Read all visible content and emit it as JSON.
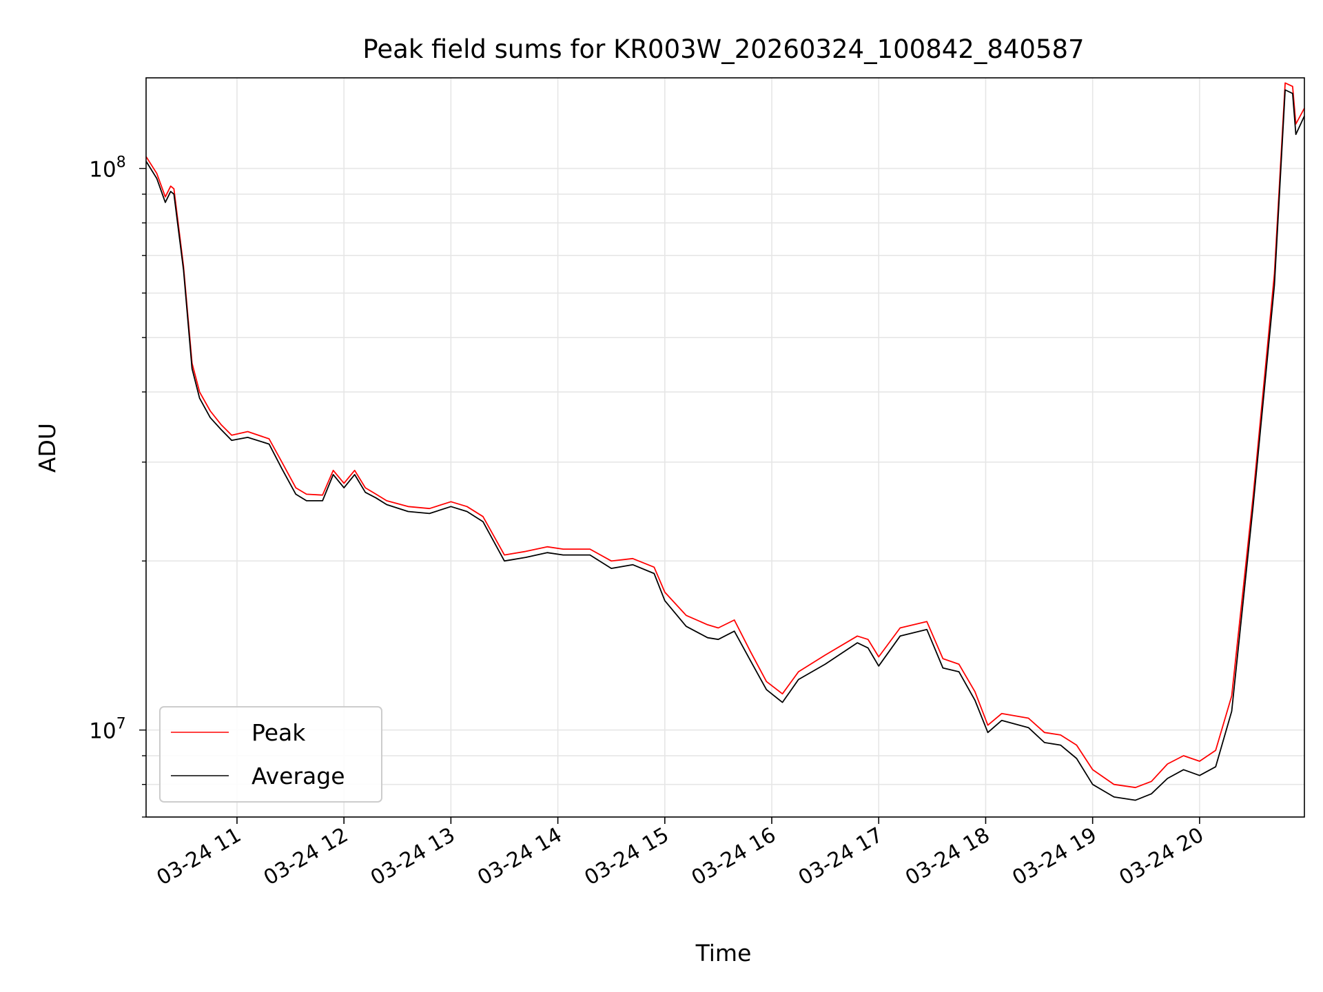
{
  "chart_data": {
    "type": "line",
    "title": "Peak field sums for KR003W_20260324_100842_840587",
    "xlabel": "Time",
    "ylabel": "ADU",
    "yscale": "log",
    "xlim_hours": [
      10.15,
      20.98
    ],
    "ylim": [
      7000000,
      145000000
    ],
    "grid": true,
    "legend_position": "lower-left",
    "x_ticks": [
      {
        "hour": 11,
        "label": "03-24 11"
      },
      {
        "hour": 12,
        "label": "03-24 12"
      },
      {
        "hour": 13,
        "label": "03-24 13"
      },
      {
        "hour": 14,
        "label": "03-24 14"
      },
      {
        "hour": 15,
        "label": "03-24 15"
      },
      {
        "hour": 16,
        "label": "03-24 16"
      },
      {
        "hour": 17,
        "label": "03-24 17"
      },
      {
        "hour": 18,
        "label": "03-24 18"
      },
      {
        "hour": 19,
        "label": "03-24 19"
      },
      {
        "hour": 20,
        "label": "03-24 20"
      }
    ],
    "y_ticks": [
      {
        "value": 10000000,
        "base": "10",
        "exp": "7"
      },
      {
        "value": 100000000,
        "base": "10",
        "exp": "8"
      }
    ],
    "series": [
      {
        "name": "Peak",
        "color": "#ff0000",
        "x_hours": [
          10.15,
          10.25,
          10.33,
          10.38,
          10.41,
          10.5,
          10.58,
          10.65,
          10.75,
          10.85,
          10.95,
          11.1,
          11.3,
          11.42,
          11.55,
          11.65,
          11.8,
          11.9,
          12.0,
          12.1,
          12.2,
          12.3,
          12.4,
          12.6,
          12.8,
          13.0,
          13.15,
          13.3,
          13.5,
          13.7,
          13.9,
          14.05,
          14.3,
          14.5,
          14.7,
          14.9,
          15.0,
          15.2,
          15.4,
          15.5,
          15.65,
          15.8,
          15.95,
          16.1,
          16.25,
          16.5,
          16.8,
          16.9,
          17.0,
          17.2,
          17.45,
          17.6,
          17.75,
          17.9,
          18.02,
          18.15,
          18.4,
          18.55,
          18.7,
          18.85,
          19.0,
          19.2,
          19.4,
          19.55,
          19.7,
          19.85,
          20.0,
          20.15,
          20.3,
          20.5,
          20.7,
          20.8,
          20.87,
          20.9,
          20.98
        ],
        "values": [
          105000000,
          98000000,
          89000000,
          93000000,
          92000000,
          67000000,
          45000000,
          40000000,
          37000000,
          35000000,
          33500000,
          34000000,
          33000000,
          30000000,
          27000000,
          26300000,
          26200000,
          29000000,
          27500000,
          29000000,
          27000000,
          26300000,
          25600000,
          25000000,
          24800000,
          25500000,
          25000000,
          24000000,
          20500000,
          20800000,
          21200000,
          21000000,
          21000000,
          20000000,
          20200000,
          19500000,
          17600000,
          16000000,
          15400000,
          15200000,
          15700000,
          13800000,
          12200000,
          11600000,
          12700000,
          13600000,
          14700000,
          14500000,
          13500000,
          15200000,
          15600000,
          13400000,
          13100000,
          11700000,
          10200000,
          10700000,
          10500000,
          9900000,
          9800000,
          9400000,
          8500000,
          8000000,
          7900000,
          8100000,
          8700000,
          9000000,
          8800000,
          9200000,
          11500000,
          26000000,
          65000000,
          142000000,
          140000000,
          120000000,
          128000000
        ]
      },
      {
        "name": "Average",
        "color": "#000000",
        "x_hours": [
          10.15,
          10.25,
          10.33,
          10.38,
          10.41,
          10.5,
          10.58,
          10.65,
          10.75,
          10.85,
          10.95,
          11.1,
          11.3,
          11.42,
          11.55,
          11.65,
          11.8,
          11.9,
          12.0,
          12.1,
          12.2,
          12.3,
          12.4,
          12.6,
          12.8,
          13.0,
          13.15,
          13.3,
          13.5,
          13.7,
          13.9,
          14.05,
          14.3,
          14.5,
          14.7,
          14.9,
          15.0,
          15.2,
          15.4,
          15.5,
          15.65,
          15.8,
          15.95,
          16.1,
          16.25,
          16.5,
          16.8,
          16.9,
          17.0,
          17.2,
          17.45,
          17.6,
          17.75,
          17.9,
          18.02,
          18.15,
          18.4,
          18.55,
          18.7,
          18.85,
          19.0,
          19.2,
          19.4,
          19.55,
          19.7,
          19.85,
          20.0,
          20.15,
          20.3,
          20.5,
          20.7,
          20.8,
          20.87,
          20.9,
          20.98
        ],
        "values": [
          103000000,
          96000000,
          87000000,
          91000000,
          90000000,
          66000000,
          44000000,
          39000000,
          36000000,
          34300000,
          32800000,
          33200000,
          32300000,
          29200000,
          26300000,
          25600000,
          25600000,
          28500000,
          27000000,
          28500000,
          26500000,
          25900000,
          25200000,
          24500000,
          24300000,
          25000000,
          24500000,
          23500000,
          20000000,
          20300000,
          20700000,
          20500000,
          20500000,
          19400000,
          19700000,
          19000000,
          17000000,
          15300000,
          14600000,
          14500000,
          15000000,
          13300000,
          11800000,
          11200000,
          12300000,
          13100000,
          14300000,
          14000000,
          13000000,
          14700000,
          15100000,
          12900000,
          12700000,
          11300000,
          9900000,
          10400000,
          10100000,
          9500000,
          9400000,
          8900000,
          8000000,
          7600000,
          7500000,
          7700000,
          8200000,
          8500000,
          8300000,
          8600000,
          10800000,
          25000000,
          62000000,
          138000000,
          136000000,
          115000000,
          124000000
        ]
      }
    ]
  }
}
